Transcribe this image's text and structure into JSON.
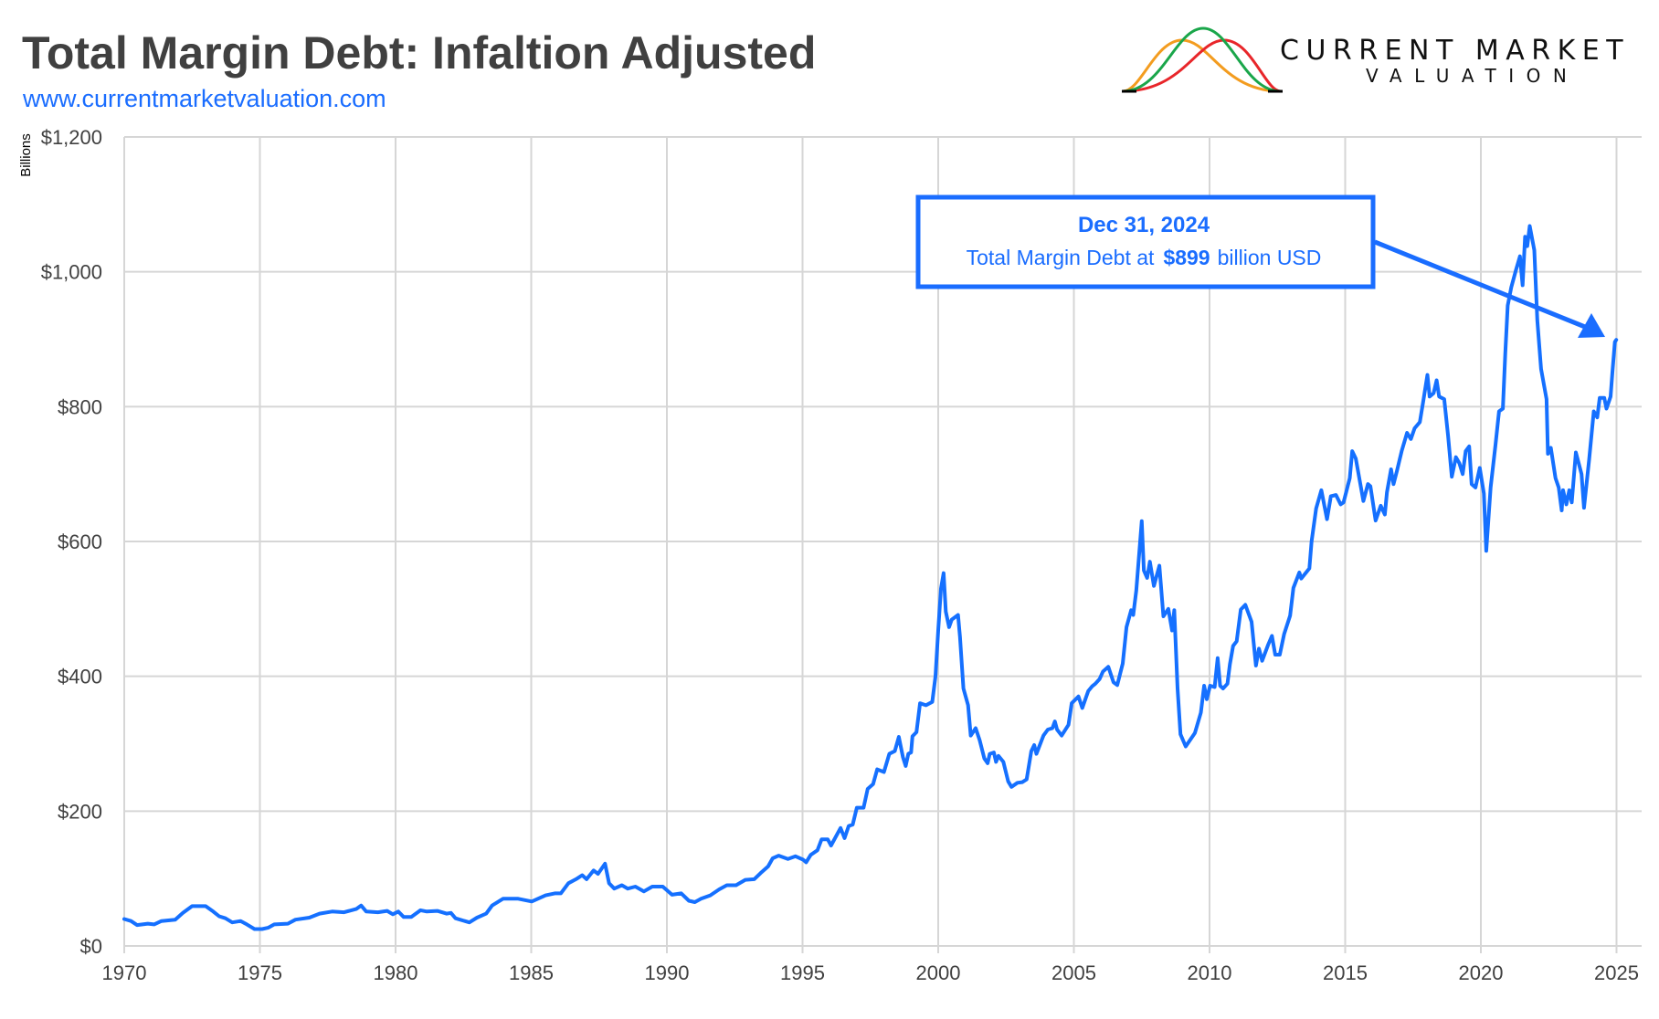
{
  "header": {
    "title": "Total Margin Debt: Infaltion Adjusted",
    "url": "www.currentmarketvaluation.com",
    "logo": {
      "line1": "CURRENT MARKET",
      "line2": "VALUATION",
      "curve_colors": [
        "#f39c1f",
        "#1aa64a",
        "#e8262a"
      ]
    }
  },
  "colors": {
    "line": "#1570ff",
    "accent": "#1a6dff",
    "grid": "#d6d6d6",
    "title": "#404040"
  },
  "annotation": {
    "date": "Dec 31, 2024",
    "text_prefix": "Total Margin Debt at",
    "value": "$899",
    "text_suffix": "billion USD"
  },
  "chart_data": {
    "type": "line",
    "title": "Total Margin Debt: Infaltion Adjusted",
    "ylabel": "Billions",
    "xlabel": "",
    "xlim": [
      1970,
      2025
    ],
    "ylim": [
      0,
      1200
    ],
    "grid": true,
    "xticks": [
      "1970",
      "1975",
      "1980",
      "1985",
      "1990",
      "1995",
      "2000",
      "2005",
      "2010",
      "2015",
      "2020",
      "2025"
    ],
    "yticks": [
      "$0",
      "$200",
      "$400",
      "$600",
      "$800",
      "$1,000",
      "$1,200"
    ],
    "series": [
      {
        "points": [
          [
            1970.0,
            40
          ],
          [
            1970.25,
            37
          ],
          [
            1970.47,
            31
          ],
          [
            1970.87,
            33
          ],
          [
            1971.1,
            32
          ],
          [
            1971.37,
            37
          ],
          [
            1971.88,
            39
          ],
          [
            1972.16,
            49
          ],
          [
            1972.5,
            59
          ],
          [
            1973.0,
            59
          ],
          [
            1973.28,
            51
          ],
          [
            1973.5,
            44
          ],
          [
            1973.73,
            41
          ],
          [
            1973.98,
            35
          ],
          [
            1974.29,
            37
          ],
          [
            1974.52,
            32
          ],
          [
            1974.8,
            25
          ],
          [
            1975.08,
            25
          ],
          [
            1975.3,
            27
          ],
          [
            1975.53,
            32
          ],
          [
            1976.03,
            33
          ],
          [
            1976.31,
            39
          ],
          [
            1976.82,
            42
          ],
          [
            1977.2,
            48
          ],
          [
            1977.66,
            51
          ],
          [
            1978.1,
            50
          ],
          [
            1978.56,
            55
          ],
          [
            1978.73,
            60
          ],
          [
            1978.92,
            51
          ],
          [
            1979.35,
            50
          ],
          [
            1979.69,
            52
          ],
          [
            1979.9,
            47
          ],
          [
            1980.1,
            51
          ],
          [
            1980.3,
            43
          ],
          [
            1980.58,
            43
          ],
          [
            1980.92,
            53
          ],
          [
            1981.15,
            51
          ],
          [
            1981.54,
            52
          ],
          [
            1981.88,
            48
          ],
          [
            1982.04,
            49
          ],
          [
            1982.21,
            41
          ],
          [
            1982.72,
            35
          ],
          [
            1983.0,
            42
          ],
          [
            1983.34,
            48
          ],
          [
            1983.56,
            60
          ],
          [
            1983.96,
            70
          ],
          [
            1984.52,
            70
          ],
          [
            1985.02,
            66
          ],
          [
            1985.53,
            75
          ],
          [
            1985.87,
            78
          ],
          [
            1986.09,
            78
          ],
          [
            1986.37,
            93
          ],
          [
            1986.65,
            99
          ],
          [
            1986.88,
            105
          ],
          [
            1987.04,
            99
          ],
          [
            1987.3,
            112
          ],
          [
            1987.46,
            107
          ],
          [
            1987.72,
            122
          ],
          [
            1987.87,
            93
          ],
          [
            1988.06,
            85
          ],
          [
            1988.34,
            90
          ],
          [
            1988.56,
            85
          ],
          [
            1988.84,
            88
          ],
          [
            1989.15,
            81
          ],
          [
            1989.46,
            88
          ],
          [
            1989.85,
            88
          ],
          [
            1990.19,
            76
          ],
          [
            1990.53,
            78
          ],
          [
            1990.81,
            67
          ],
          [
            1991.03,
            65
          ],
          [
            1991.26,
            70
          ],
          [
            1991.6,
            75
          ],
          [
            1991.93,
            84
          ],
          [
            1992.21,
            90
          ],
          [
            1992.55,
            90
          ],
          [
            1992.89,
            98
          ],
          [
            1993.22,
            99
          ],
          [
            1993.45,
            108
          ],
          [
            1993.73,
            118
          ],
          [
            1993.9,
            130
          ],
          [
            1994.12,
            134
          ],
          [
            1994.46,
            129
          ],
          [
            1994.74,
            133
          ],
          [
            1995.02,
            128
          ],
          [
            1995.13,
            124
          ],
          [
            1995.3,
            135
          ],
          [
            1995.55,
            142
          ],
          [
            1995.7,
            158
          ],
          [
            1995.93,
            158
          ],
          [
            1996.05,
            149
          ],
          [
            1996.4,
            175
          ],
          [
            1996.55,
            160
          ],
          [
            1996.7,
            178
          ],
          [
            1996.85,
            180
          ],
          [
            1997.0,
            205
          ],
          [
            1997.25,
            205
          ],
          [
            1997.4,
            233
          ],
          [
            1997.6,
            240
          ],
          [
            1997.75,
            262
          ],
          [
            1998.0,
            258
          ],
          [
            1998.2,
            285
          ],
          [
            1998.4,
            289
          ],
          [
            1998.55,
            310
          ],
          [
            1998.7,
            280
          ],
          [
            1998.8,
            267
          ],
          [
            1998.9,
            285
          ],
          [
            1999.0,
            287
          ],
          [
            1999.05,
            311
          ],
          [
            1999.2,
            317
          ],
          [
            1999.33,
            360
          ],
          [
            1999.55,
            357
          ],
          [
            1999.78,
            362
          ],
          [
            1999.9,
            400
          ],
          [
            2000.0,
            468
          ],
          [
            2000.1,
            530
          ],
          [
            2000.2,
            553
          ],
          [
            2000.28,
            496
          ],
          [
            2000.4,
            473
          ],
          [
            2000.5,
            484
          ],
          [
            2000.73,
            491
          ],
          [
            2000.8,
            459
          ],
          [
            2000.93,
            382
          ],
          [
            2001.1,
            357
          ],
          [
            2001.2,
            312
          ],
          [
            2001.38,
            323
          ],
          [
            2001.53,
            305
          ],
          [
            2001.7,
            278
          ],
          [
            2001.82,
            271
          ],
          [
            2001.9,
            285
          ],
          [
            2002.05,
            287
          ],
          [
            2002.13,
            273
          ],
          [
            2002.22,
            282
          ],
          [
            2002.4,
            273
          ],
          [
            2002.58,
            244
          ],
          [
            2002.7,
            236
          ],
          [
            2002.92,
            242
          ],
          [
            2003.1,
            243
          ],
          [
            2003.26,
            247
          ],
          [
            2003.43,
            289
          ],
          [
            2003.54,
            298
          ],
          [
            2003.62,
            285
          ],
          [
            2003.88,
            312
          ],
          [
            2004.04,
            321
          ],
          [
            2004.21,
            323
          ],
          [
            2004.3,
            333
          ],
          [
            2004.38,
            321
          ],
          [
            2004.55,
            312
          ],
          [
            2004.8,
            328
          ],
          [
            2004.92,
            360
          ],
          [
            2005.17,
            370
          ],
          [
            2005.31,
            353
          ],
          [
            2005.53,
            378
          ],
          [
            2005.67,
            385
          ],
          [
            2005.79,
            389
          ],
          [
            2005.95,
            396
          ],
          [
            2006.07,
            407
          ],
          [
            2006.27,
            414
          ],
          [
            2006.46,
            391
          ],
          [
            2006.6,
            387
          ],
          [
            2006.8,
            419
          ],
          [
            2006.94,
            473
          ],
          [
            2007.11,
            498
          ],
          [
            2007.19,
            491
          ],
          [
            2007.3,
            527
          ],
          [
            2007.5,
            630
          ],
          [
            2007.58,
            557
          ],
          [
            2007.7,
            546
          ],
          [
            2007.8,
            570
          ],
          [
            2007.95,
            534
          ],
          [
            2008.15,
            564
          ],
          [
            2008.3,
            489
          ],
          [
            2008.48,
            500
          ],
          [
            2008.62,
            468
          ],
          [
            2008.7,
            498
          ],
          [
            2008.82,
            382
          ],
          [
            2008.93,
            314
          ],
          [
            2009.12,
            296
          ],
          [
            2009.46,
            316
          ],
          [
            2009.68,
            346
          ],
          [
            2009.8,
            386
          ],
          [
            2009.9,
            366
          ],
          [
            2010.02,
            386
          ],
          [
            2010.19,
            384
          ],
          [
            2010.3,
            427
          ],
          [
            2010.39,
            386
          ],
          [
            2010.5,
            382
          ],
          [
            2010.66,
            389
          ],
          [
            2010.75,
            418
          ],
          [
            2010.87,
            445
          ],
          [
            2011.0,
            452
          ],
          [
            2011.15,
            499
          ],
          [
            2011.32,
            506
          ],
          [
            2011.55,
            481
          ],
          [
            2011.71,
            416
          ],
          [
            2011.82,
            441
          ],
          [
            2011.94,
            423
          ],
          [
            2012.16,
            447
          ],
          [
            2012.3,
            460
          ],
          [
            2012.42,
            432
          ],
          [
            2012.59,
            432
          ],
          [
            2012.75,
            463
          ],
          [
            2012.97,
            490
          ],
          [
            2013.09,
            531
          ],
          [
            2013.31,
            554
          ],
          [
            2013.38,
            545
          ],
          [
            2013.68,
            560
          ],
          [
            2013.76,
            600
          ],
          [
            2013.93,
            649
          ],
          [
            2014.12,
            676
          ],
          [
            2014.33,
            633
          ],
          [
            2014.47,
            667
          ],
          [
            2014.66,
            669
          ],
          [
            2014.83,
            655
          ],
          [
            2014.94,
            658
          ],
          [
            2015.17,
            694
          ],
          [
            2015.26,
            734
          ],
          [
            2015.39,
            723
          ],
          [
            2015.67,
            660
          ],
          [
            2015.84,
            685
          ],
          [
            2015.93,
            682
          ],
          [
            2016.12,
            631
          ],
          [
            2016.31,
            653
          ],
          [
            2016.46,
            640
          ],
          [
            2016.54,
            673
          ],
          [
            2016.69,
            707
          ],
          [
            2016.78,
            685
          ],
          [
            2016.91,
            705
          ],
          [
            2017.08,
            734
          ],
          [
            2017.28,
            761
          ],
          [
            2017.42,
            752
          ],
          [
            2017.56,
            768
          ],
          [
            2017.75,
            777
          ],
          [
            2017.87,
            806
          ],
          [
            2018.03,
            847
          ],
          [
            2018.11,
            815
          ],
          [
            2018.26,
            820
          ],
          [
            2018.37,
            839
          ],
          [
            2018.46,
            815
          ],
          [
            2018.65,
            811
          ],
          [
            2018.79,
            757
          ],
          [
            2018.93,
            696
          ],
          [
            2019.08,
            725
          ],
          [
            2019.21,
            716
          ],
          [
            2019.33,
            700
          ],
          [
            2019.44,
            734
          ],
          [
            2019.57,
            741
          ],
          [
            2019.66,
            685
          ],
          [
            2019.8,
            680
          ],
          [
            2019.96,
            709
          ],
          [
            2020.11,
            671
          ],
          [
            2020.2,
            586
          ],
          [
            2020.36,
            680
          ],
          [
            2020.54,
            743
          ],
          [
            2020.67,
            793
          ],
          [
            2020.81,
            797
          ],
          [
            2020.9,
            878
          ],
          [
            2020.99,
            950
          ],
          [
            2021.12,
            977
          ],
          [
            2021.29,
            1002
          ],
          [
            2021.44,
            1023
          ],
          [
            2021.54,
            980
          ],
          [
            2021.63,
            1052
          ],
          [
            2021.71,
            1038
          ],
          [
            2021.8,
            1068
          ],
          [
            2021.97,
            1032
          ],
          [
            2022.08,
            928
          ],
          [
            2022.22,
            856
          ],
          [
            2022.42,
            811
          ],
          [
            2022.47,
            730
          ],
          [
            2022.58,
            739
          ],
          [
            2022.75,
            694
          ],
          [
            2022.87,
            680
          ],
          [
            2022.98,
            646
          ],
          [
            2023.03,
            676
          ],
          [
            2023.15,
            655
          ],
          [
            2023.26,
            676
          ],
          [
            2023.35,
            658
          ],
          [
            2023.5,
            732
          ],
          [
            2023.71,
            700
          ],
          [
            2023.8,
            650
          ],
          [
            2023.99,
            721
          ],
          [
            2024.16,
            793
          ],
          [
            2024.29,
            784
          ],
          [
            2024.38,
            813
          ],
          [
            2024.55,
            813
          ],
          [
            2024.63,
            797
          ],
          [
            2024.78,
            815
          ],
          [
            2024.85,
            851
          ],
          [
            2024.94,
            896
          ],
          [
            2024.99,
            899
          ]
        ]
      }
    ]
  }
}
